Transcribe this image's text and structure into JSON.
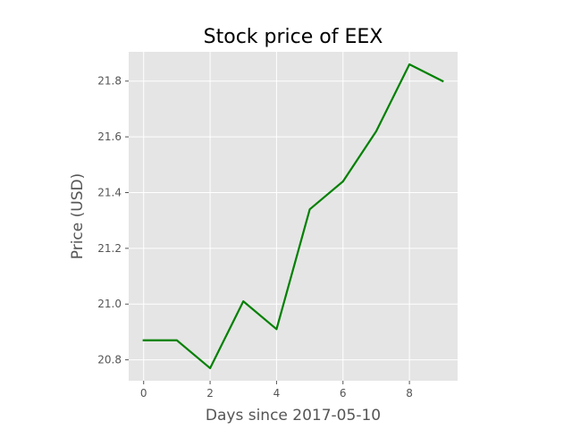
{
  "chart_data": {
    "type": "line",
    "title": "Stock price of EEX",
    "xlabel": "Days since 2017-05-10",
    "ylabel": "Price (USD)",
    "x": [
      0,
      1,
      2,
      3,
      4,
      5,
      6,
      7,
      8,
      9
    ],
    "series": [
      {
        "values": [
          20.87,
          20.87,
          20.77,
          21.01,
          20.91,
          21.34,
          21.44,
          21.62,
          21.86,
          21.8
        ],
        "color": "#008000"
      }
    ],
    "xticks": [
      0,
      2,
      4,
      6,
      8
    ],
    "xtick_labels": [
      "0",
      "2",
      "4",
      "6",
      "8"
    ],
    "yticks": [
      20.8,
      21.0,
      21.2,
      21.4,
      21.6,
      21.8
    ],
    "ytick_labels": [
      "20.8",
      "21.0",
      "21.2",
      "21.4",
      "21.6",
      "21.8"
    ],
    "xlim": [
      -0.45,
      9.45
    ],
    "ylim": [
      20.725,
      21.905
    ],
    "grid": true,
    "style": "ggplot",
    "colors": {
      "plot_background": "#e5e5e5",
      "grid": "#ffffff",
      "line": "#008000",
      "tick_text": "#555555",
      "label_text": "#555555",
      "title_text": "#000000"
    }
  }
}
